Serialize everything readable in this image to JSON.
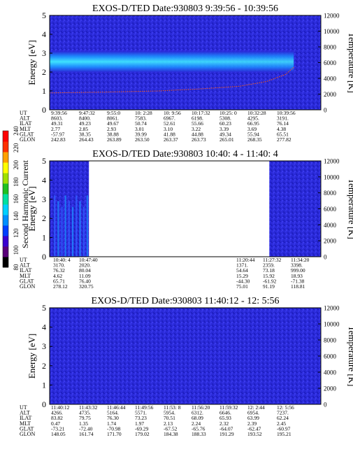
{
  "colors": {
    "plot_background": "#2a2ad8",
    "gap_fill": "#ffffff",
    "trace": "#ff5a10",
    "band_core": "#40e0ff",
    "band_edge": "#1e90ff"
  },
  "chart_data": [
    {
      "type": "heatmap",
      "title": "EXOS-D/TED   Date:930803  9:39:56 - 10:39:56",
      "ylabel": "Energy [eV]",
      "ylabel_right": "Temperature [K]",
      "ylim": [
        0,
        5
      ],
      "y_ticks": [
        "0",
        "1",
        "2",
        "3",
        "4",
        "5"
      ],
      "y2lim": [
        0,
        12000
      ],
      "y2_ticks": [
        "0",
        "2000",
        "4000",
        "6000",
        "8000",
        "10000",
        "12000"
      ],
      "band": {
        "center": 2.55,
        "width": 0.55,
        "start_fraction": 0.0,
        "end_fraction": 0.9
      },
      "temperature_trace": [
        {
          "x": 0.0,
          "y": 2150
        },
        {
          "x": 0.2,
          "y": 2250
        },
        {
          "x": 0.4,
          "y": 2400
        },
        {
          "x": 0.55,
          "y": 2650
        },
        {
          "x": 0.7,
          "y": 3000
        },
        {
          "x": 0.8,
          "y": 3600
        },
        {
          "x": 0.87,
          "y": 4500
        },
        {
          "x": 0.9,
          "y": 5400
        }
      ],
      "data_gaps": [],
      "table": {
        "row_labels": [
          "UT",
          "ALT",
          "ILAT",
          "MLT",
          "GLAT",
          "GLON"
        ],
        "columns": [
          [
            "9:39:56",
            "8603.",
            "49.31",
            "2.77",
            "-57.97",
            "242.83"
          ],
          [
            "9:47:32",
            "8400.",
            "49.23",
            "2.85",
            "38.35",
            "264.43"
          ],
          [
            "9:55:0",
            "8061.",
            "49.67",
            "2.93",
            "38.88",
            "263.89"
          ],
          [
            "10: 2:28",
            "7583.",
            "50.74",
            "3.01",
            "39.99",
            "263.50"
          ],
          [
            "10: 9:56",
            "6967.",
            "52.61",
            "3.10",
            "41.88",
            "263.37"
          ],
          [
            "10:17:32",
            "6198.",
            "55.66",
            "3.22",
            "44.88",
            "263.73"
          ],
          [
            "10:25: 0",
            "5308.",
            "60.23",
            "3.39",
            "49.34",
            "265.01"
          ],
          [
            "10:32:28",
            "4295.",
            "66.95",
            "3.69",
            "55.94",
            "268.35"
          ],
          [
            "10:39:56",
            "3191.",
            "76.14",
            "4.38",
            "65.51",
            "277.82"
          ]
        ]
      }
    },
    {
      "type": "heatmap",
      "title": "EXOS-D/TED   Date:930803  10:40: 4 - 11:40: 4",
      "ylabel": "Energy [eV]",
      "ylabel_right": "Temperature [K]",
      "ylim": [
        0,
        5
      ],
      "y_ticks": [
        "0",
        "1",
        "2",
        "3",
        "4",
        "5"
      ],
      "y2lim": [
        0,
        12000
      ],
      "y2_ticks": [
        "0",
        "2000",
        "4000",
        "6000",
        "8000",
        "10000",
        "12000"
      ],
      "data_gaps": [
        [
          0.145,
          0.81
        ]
      ],
      "table": {
        "row_labels": [
          "UT",
          "ALT",
          "ILAT",
          "MLT",
          "GLAT",
          "GLON"
        ],
        "columns": [
          [
            "10:40: 4",
            "3170.",
            "76.32",
            "4.62",
            "65.71",
            "278.12"
          ],
          [
            "10:47:40",
            "2020.",
            "80.04",
            "11.09",
            "76.40",
            "320.75"
          ],
          [
            "11:20:44",
            "1371.",
            "54.64",
            "15.29",
            "-44.30",
            "75.01"
          ],
          [
            "11:27:32",
            "2359.",
            "73.18",
            "15.92",
            "-61.92",
            "91.19"
          ],
          [
            "11:34:20",
            "3398.",
            "999.00",
            "18.93",
            "-71.38",
            "118.81"
          ]
        ]
      }
    },
    {
      "type": "heatmap",
      "title": "EXOS-D/TED   Date:930803  11:40:12 - 12: 5:56",
      "ylabel": "Energy [eV]",
      "ylabel_right": "Temperature [K]",
      "ylim": [
        0,
        5
      ],
      "y_ticks": [
        "0",
        "1",
        "2",
        "3",
        "4",
        "5"
      ],
      "y2lim": [
        0,
        12000
      ],
      "y2_ticks": [
        "0",
        "2000",
        "4000",
        "6000",
        "8000",
        "10000",
        "12000"
      ],
      "data_gaps": [],
      "table": {
        "row_labels": [
          "UT",
          "ALT",
          "ILAT",
          "MLT",
          "GLAT",
          "GLON"
        ],
        "columns": [
          [
            "11:40:12",
            "4266.",
            "83.82",
            "0.47",
            "-73.21",
            "148.05"
          ],
          [
            "11:43:32",
            "4735.",
            "79.75",
            "1.35",
            "-72.40",
            "161.74"
          ],
          [
            "11:46:44",
            "5164.",
            "76.30",
            "1.74",
            "-70.98",
            "171.70"
          ],
          [
            "11:49:56",
            "5571.",
            "73.23",
            "1.97",
            "-69.29",
            "179.02"
          ],
          [
            "11:53: 8",
            "5954.",
            "70.51",
            "2.13",
            "-67.52",
            "184.38"
          ],
          [
            "11:56:20",
            "6312.",
            "68.09",
            "2.24",
            "-65.76",
            "188.33"
          ],
          [
            "11:59:32",
            "6646.",
            "65.93",
            "2.32",
            "-64.07",
            "191.29"
          ],
          [
            "12: 2:44",
            "6954.",
            "63.99",
            "2.39",
            "-62.47",
            "193.52"
          ],
          [
            "12: 5:56",
            "7237.",
            "62.24",
            "2.45",
            "-60.97",
            "195.21"
          ]
        ]
      }
    }
  ],
  "colorbar": {
    "label": "Second Harmonic Current",
    "ticks": [
      "80",
      "100",
      "120",
      "140",
      "160",
      "180",
      "200",
      "220",
      "240"
    ],
    "colors": [
      "#000000",
      "#5a007a",
      "#3a00d0",
      "#0040ff",
      "#0090ff",
      "#00d0ff",
      "#00e0a0",
      "#20c020",
      "#a0e000",
      "#ffff00",
      "#ffa000",
      "#ff3000",
      "#ff0000"
    ]
  }
}
